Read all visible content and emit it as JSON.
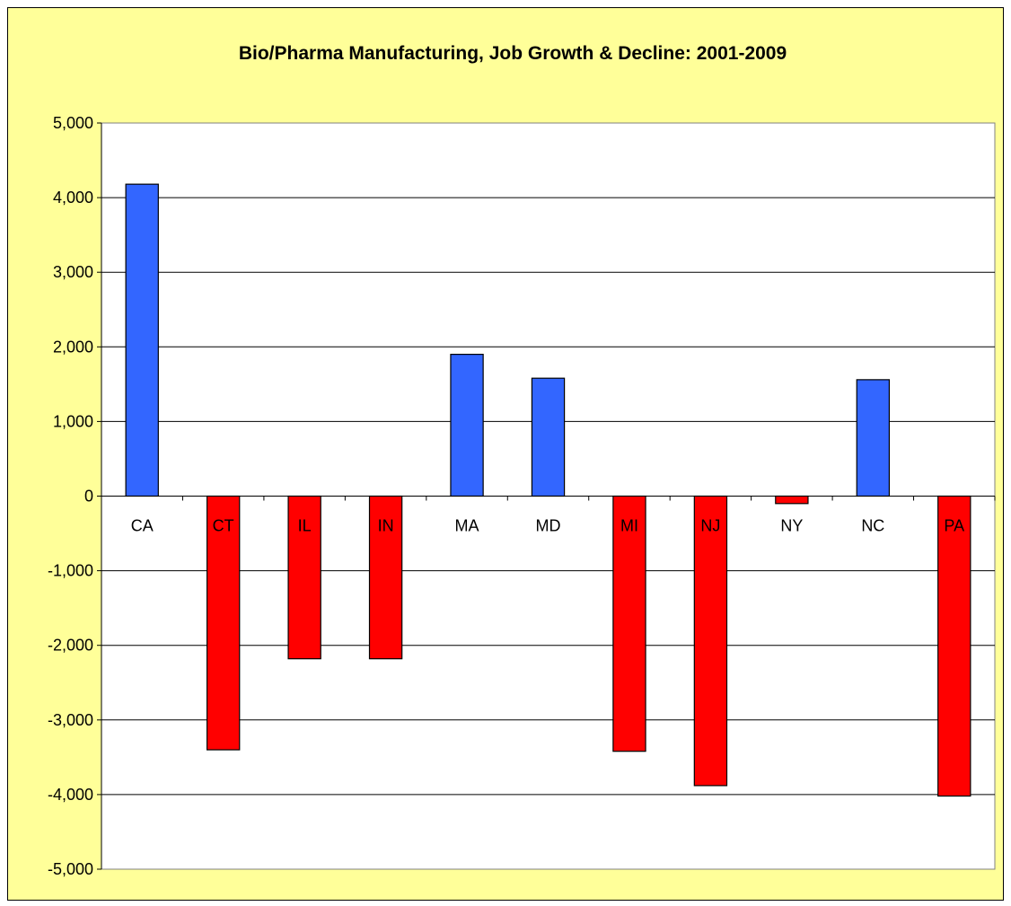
{
  "chart_data": {
    "type": "bar",
    "title": "Bio/Pharma Manufacturing, Job Growth & Decline: 2001-2009",
    "xlabel": "",
    "ylabel": "",
    "categories": [
      "CA",
      "CT",
      "IL",
      "IN",
      "MA",
      "MD",
      "MI",
      "NJ",
      "NY",
      "NC",
      "PA"
    ],
    "values": [
      4180,
      -3400,
      -2180,
      -2180,
      1900,
      1580,
      -3420,
      -3880,
      -100,
      1560,
      -4020
    ],
    "ylim": [
      -5000,
      5000
    ],
    "yticks": [
      5000,
      4000,
      3000,
      2000,
      1000,
      0,
      -1000,
      -2000,
      -3000,
      -4000,
      -5000
    ],
    "ytick_labels": [
      "5,000",
      "4,000",
      "3,000",
      "2,000",
      "1,000",
      "0",
      "-1,000",
      "-2,000",
      "-3,000",
      "-4,000",
      "-5,000"
    ],
    "grid": true,
    "legend": "none",
    "colors": {
      "positive_bar": "#3366ff",
      "negative_bar": "#ff0000",
      "chart_background": "#ffff99",
      "plot_background": "#ffffff",
      "positive_label": "#000000",
      "negative_label": "#cc0000"
    }
  }
}
